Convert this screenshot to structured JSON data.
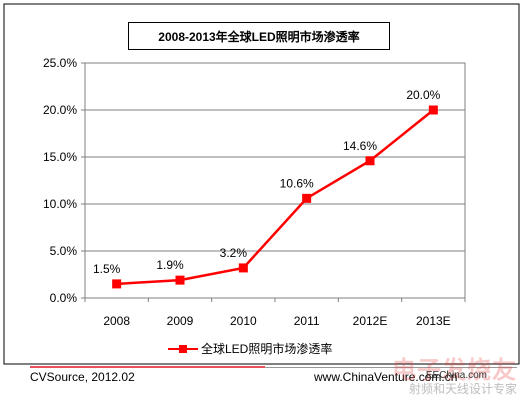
{
  "chart_data": {
    "type": "line",
    "title": "2008-2013年全球LED照明市场渗透率",
    "categories": [
      "2008",
      "2009",
      "2010",
      "2011",
      "2012E",
      "2013E"
    ],
    "series": [
      {
        "name": "全球LED照明市场渗透率",
        "values": [
          1.5,
          1.9,
          3.2,
          10.6,
          14.6,
          20.0
        ],
        "labels": [
          "1.5%",
          "1.9%",
          "3.2%",
          "10.6%",
          "14.6%",
          "20.0%"
        ],
        "color": "#ff0000"
      }
    ],
    "y_ticks": [
      "25.0%",
      "20.0%",
      "15.0%",
      "10.0%",
      "5.0%",
      "0.0%"
    ],
    "ylim": [
      0,
      25
    ],
    "grid": true,
    "legend_position": "bottom"
  },
  "footer": {
    "source": "CVSource, 2012.02",
    "website": "www.ChinaVenture.com.cn"
  },
  "watermark": {
    "brand": "电子发烧友",
    "tagline": "射频和天线设计专家",
    "site": "EEChina.com"
  }
}
